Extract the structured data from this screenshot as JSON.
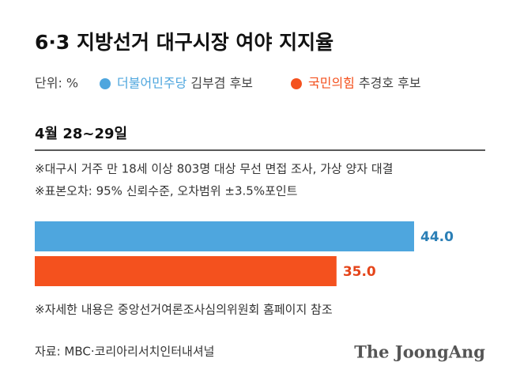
{
  "chart_data": {
    "type": "bar",
    "orientation": "horizontal",
    "title": "6·3 지방선거 대구시장 여야 지지율",
    "unit": "단위: %",
    "date": "4월 28~29일",
    "notes": [
      "※대구시 거주 만 18세 이상 803명 대상 무선 면접 조사, 가상 양자 대결",
      "※표본오차: 95% 신뢰수준, 오차범위 ±3.5%포인트"
    ],
    "footnote": "※자세한 내용은 중앙선거여론조사심의위원회 홈페이지 참조",
    "source": "자료: MBC·코리아리서치인터내셔널",
    "brand": "The JoongAng",
    "series": [
      {
        "name": "더불어민주당",
        "candidate": "김부겸 후보",
        "color": "#4ea6de",
        "label_color": "#2b7fb6",
        "values": [
          44.0
        ],
        "value_labels": [
          "44.0"
        ]
      },
      {
        "name": "국민의힘",
        "candidate": "추경호 후보",
        "color": "#f4511e",
        "label_color": "#e5451a",
        "values": [
          35.0
        ],
        "value_labels": [
          "35.0"
        ]
      }
    ]
  }
}
